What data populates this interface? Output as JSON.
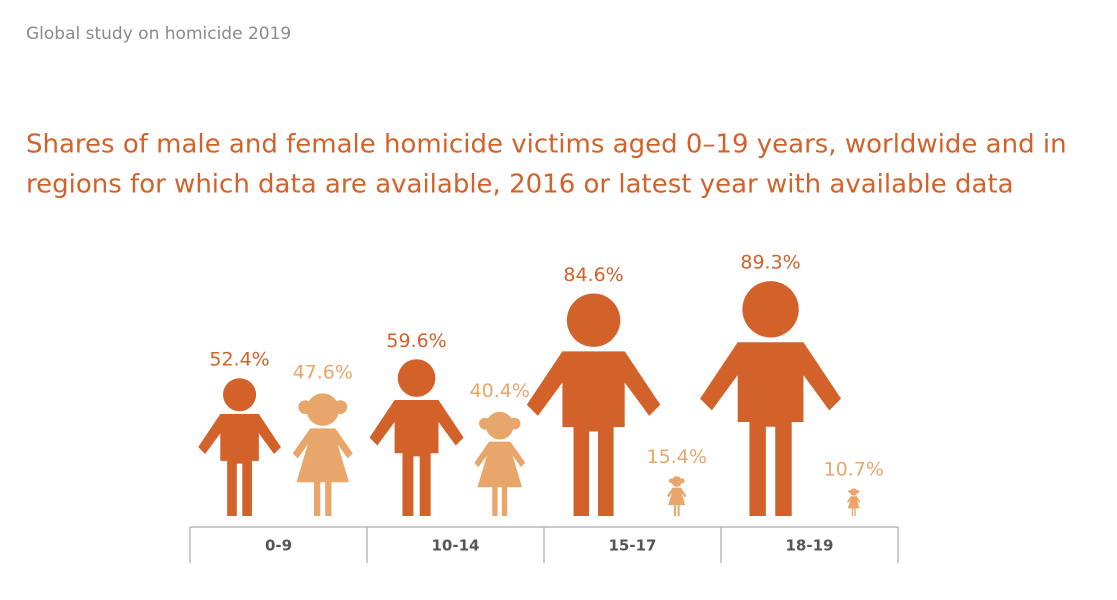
{
  "header": "Global study on homicide 2019",
  "chart_data": {
    "type": "pictogram",
    "title_lines": [
      "Shares of male and female homicide victims aged 0–19 years, worldwide and in",
      "regions for which data are available, 2016 or latest year with available data"
    ],
    "categories": [
      "0-9",
      "10-14",
      "15-17",
      "18-19"
    ],
    "series": [
      {
        "color": "#d2622a",
        "values": [
          52.4,
          59.6,
          84.6,
          89.3
        ],
        "value_labels": [
          "52.4%",
          "59.6%",
          "84.6%",
          "89.3%"
        ]
      },
      {
        "color": "#e9a66b",
        "values": [
          47.6,
          40.4,
          15.4,
          10.7
        ],
        "value_labels": [
          "47.6%",
          "40.4%",
          "15.4%",
          "10.7%"
        ]
      }
    ]
  }
}
